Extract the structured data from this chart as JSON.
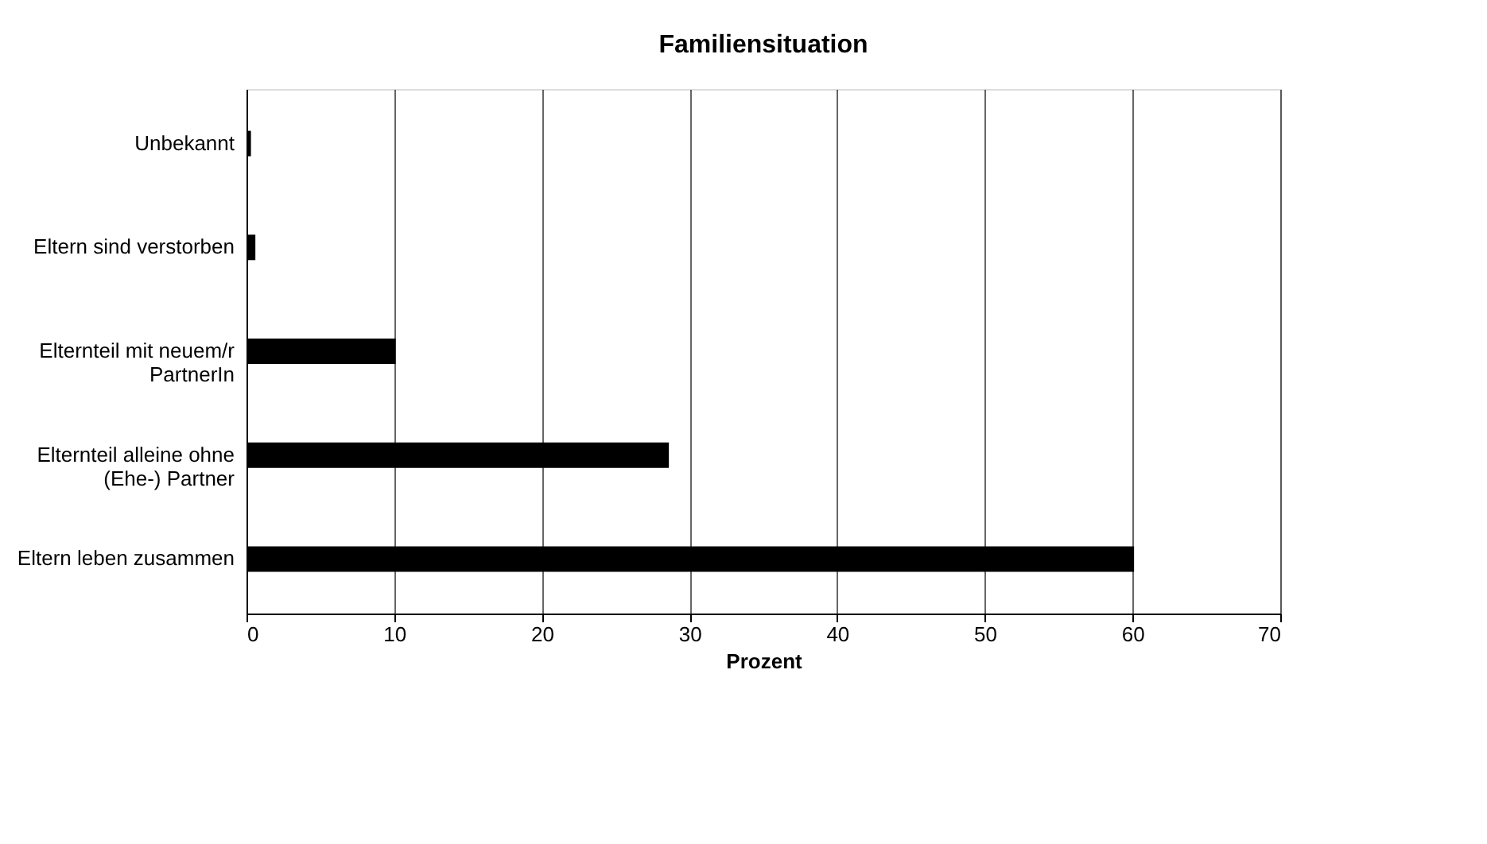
{
  "chart_data": {
    "type": "bar",
    "orientation": "horizontal",
    "title": "Familiensituation",
    "xlabel": "Prozent",
    "categories": [
      "Unbekannt",
      "Eltern sind verstorben",
      "Elternteil mit neuem/r PartnerIn",
      "Elternteil alleine ohne (Ehe-) Partner",
      "Eltern leben zusammen"
    ],
    "values": [
      0.3,
      0.6,
      10.1,
      28.6,
      60.1
    ],
    "color": "#000000",
    "xlim": [
      0,
      70
    ],
    "xticks": [
      0,
      10,
      20,
      30,
      40,
      50,
      60,
      70
    ],
    "grid": "x"
  }
}
